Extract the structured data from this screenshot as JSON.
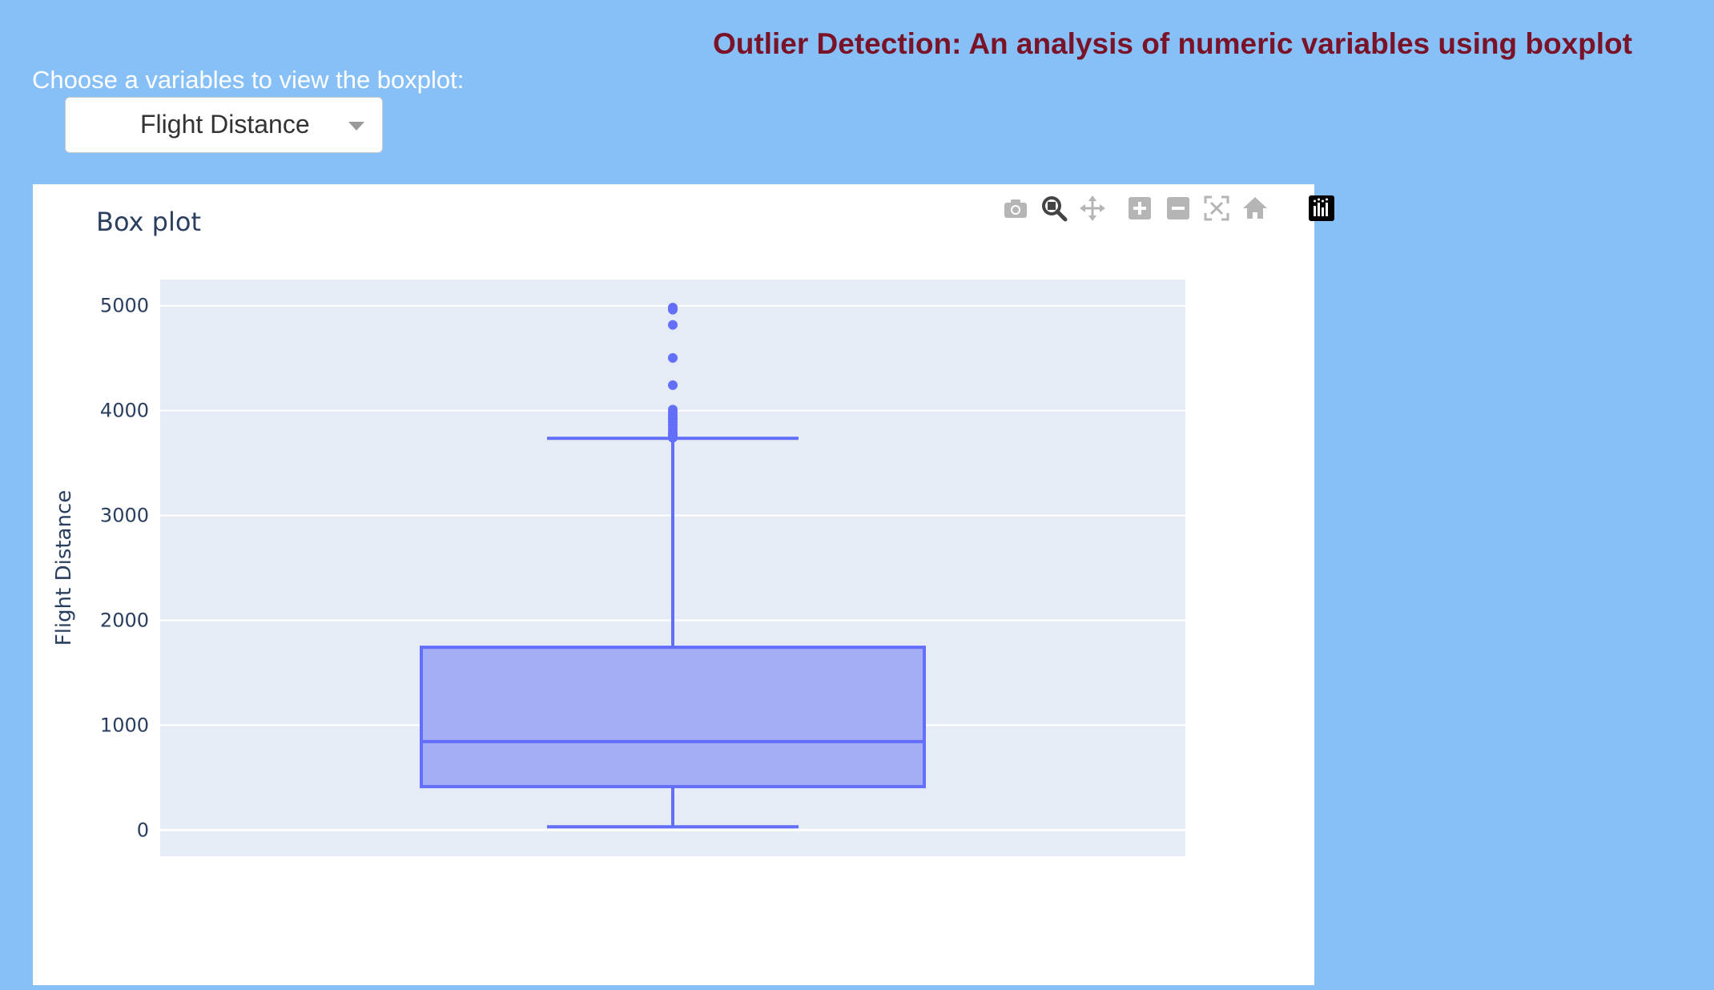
{
  "header": {
    "title": "Outlier Detection: An analysis of numeric variables using boxplot"
  },
  "controls": {
    "chooser_label": "Choose a variables to view the boxplot:",
    "selected_variable": "Flight Distance"
  },
  "modebar": {
    "buttons": [
      {
        "icon": "camera-icon",
        "name": "download-plot-button"
      },
      {
        "icon": "zoom-icon",
        "name": "zoom-button",
        "active": true
      },
      {
        "icon": "pan-icon",
        "name": "pan-button"
      },
      {
        "icon": "zoom-in-icon",
        "name": "zoom-in-button"
      },
      {
        "icon": "zoom-out-icon",
        "name": "zoom-out-button"
      },
      {
        "icon": "autoscale-icon",
        "name": "autoscale-button"
      },
      {
        "icon": "home-icon",
        "name": "reset-axes-button"
      },
      {
        "icon": "plotly-logo-icon",
        "name": "plotly-logo-button"
      }
    ]
  },
  "colors": {
    "page_background": "#87c0f7",
    "title": "#7a1228",
    "plot_background": "#e5ecf6",
    "box_line": "#636efa",
    "box_fill": "#a4aef4"
  },
  "chart_data": {
    "type": "box",
    "title": "Box plot",
    "xlabel": "",
    "ylabel": "Flight Distance",
    "ylim": [
      -250,
      5250
    ],
    "yticks": [
      0,
      1000,
      2000,
      3000,
      4000,
      5000
    ],
    "grid": true,
    "series": [
      {
        "min": 31,
        "q1": 414,
        "median": 843,
        "q3": 1743,
        "upper_fence": 3736,
        "outliers": [
          3740,
          3760,
          3780,
          3800,
          3830,
          3860,
          3890,
          3920,
          3950,
          3980,
          4010,
          4243,
          4502,
          4817,
          4963,
          4983
        ]
      }
    ]
  }
}
